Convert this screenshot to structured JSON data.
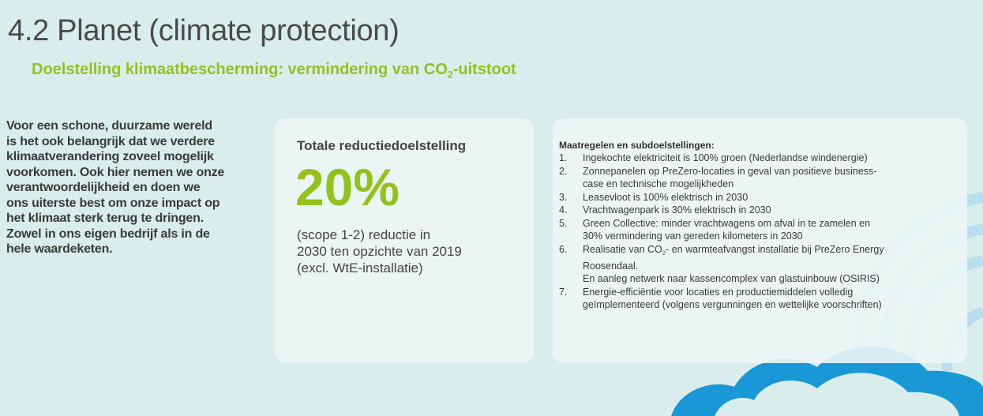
{
  "header": {
    "title": "4.2 Planet (climate protection)",
    "subtitle": [
      "Doelstelling klimaatbescherming: vermindering van CO",
      "2",
      "-uitstoot"
    ]
  },
  "intro": {
    "lines": [
      "Voor een schone, duurzame wereld",
      "is het ook belangrijk dat we verdere",
      "klimaatverandering zoveel mogelijk",
      "voorkomen. Ook hier nemen we onze",
      "verantwoordelijkheid en doen we",
      "ons uiterste best om onze impact op",
      "het klimaat sterk terug te dringen.",
      "Zowel in ons eigen bedrijf als in de",
      "hele waardeketen."
    ]
  },
  "target_card": {
    "heading": "Totale reductiedoelstelling",
    "figure": "20%",
    "lines": [
      "(scope 1-2) reductie in",
      "2030 ten opzichte van 2019",
      "(excl. WtE-installatie)"
    ]
  },
  "measures_card": {
    "heading": "Maatregelen en subdoelstellingen:",
    "items": [
      {
        "number": "1.",
        "lines": [
          "Ingekochte elektriciteit is 100% groen (Nederlandse windenergie)"
        ]
      },
      {
        "number": "2.",
        "lines": [
          "Zonnepanelen op PreZero-locaties in geval van positieve business-",
          "case en technische mogelijkheden"
        ]
      },
      {
        "number": "3.",
        "lines": [
          "Leasevloot is 100% elektrisch in 2030"
        ]
      },
      {
        "number": "4.",
        "lines": [
          "Vrachtwagenpark is 30% elektrisch in 2030"
        ]
      },
      {
        "number": "5.",
        "lines": [
          "Green Collective: minder vrachtwagens om afval in te zamelen en",
          "30% vermindering van gereden kilometers in 2030"
        ]
      },
      {
        "number": "6.",
        "lines": [
          [
            "Realisatie van CO",
            "2",
            "- en warmteafvangst installatie bij PreZero Energy"
          ],
          "Roosendaal.",
          "En aanleg netwerk naar kassencomplex van glastuinbouw (OSIRIS)"
        ]
      },
      {
        "number": "7.",
        "lines": [
          "Energie-efficiëntie voor locaties en productiemiddelen volledig",
          "geïmplementeerd (volgens vergunningen en wettelijke voorschriften)"
        ]
      }
    ]
  }
}
